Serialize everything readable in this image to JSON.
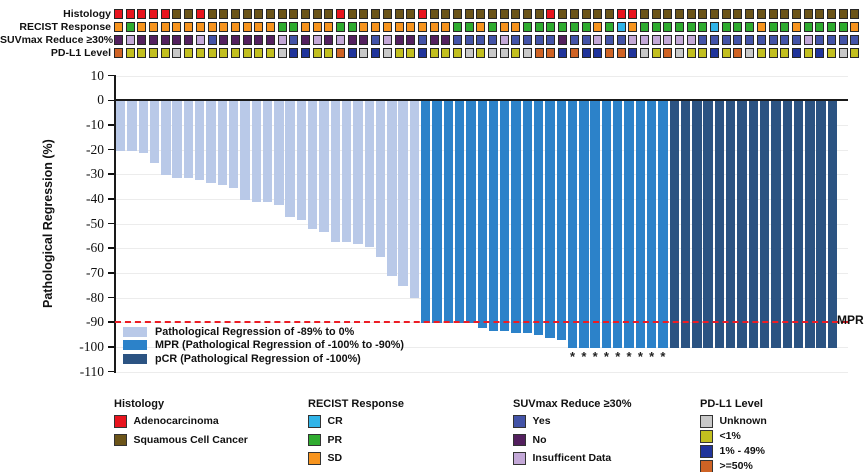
{
  "annotation": {
    "rows": [
      {
        "key": "histology",
        "label": "Histology"
      },
      {
        "key": "recist",
        "label": "RECIST Response"
      },
      {
        "key": "suvmax",
        "label": "SUVmax Reduce ≥30%"
      },
      {
        "key": "pdl1",
        "label": "PD-L1 Level"
      }
    ],
    "palettes": {
      "histology": {
        "A": "#e8141e",
        "S": "#6b5418"
      },
      "recist": {
        "CR": "#30b4e8",
        "PR": "#2fab2f",
        "SD": "#f7941e"
      },
      "suvmax": {
        "Y": "#4353a7",
        "N": "#53205e",
        "I": "#c3a8d7"
      },
      "pdl1": {
        "U": "#c9c9c9",
        "L": "#c2bf1f",
        "M": "#20349b",
        "H": "#cf6325"
      }
    },
    "tracks": {
      "histology": [
        "A",
        "A",
        "A",
        "A",
        "A",
        "S",
        "S",
        "A",
        "S",
        "S",
        "S",
        "S",
        "S",
        "S",
        "S",
        "S",
        "S",
        "S",
        "S",
        "A",
        "S",
        "S",
        "S",
        "S",
        "S",
        "S",
        "A",
        "S",
        "S",
        "S",
        "S",
        "S",
        "S",
        "S",
        "S",
        "S",
        "S",
        "A",
        "S",
        "S",
        "S",
        "S",
        "S",
        "A",
        "A",
        "S",
        "S",
        "S",
        "S",
        "S",
        "S",
        "S",
        "S",
        "S",
        "S",
        "S",
        "S",
        "S",
        "S",
        "S",
        "S",
        "S",
        "S",
        "S"
      ],
      "recist": [
        "SD",
        "PR",
        "SD",
        "SD",
        "SD",
        "SD",
        "SD",
        "SD",
        "SD",
        "SD",
        "SD",
        "SD",
        "SD",
        "SD",
        "PR",
        "PR",
        "SD",
        "SD",
        "SD",
        "PR",
        "PR",
        "SD",
        "SD",
        "SD",
        "SD",
        "SD",
        "SD",
        "SD",
        "SD",
        "PR",
        "PR",
        "SD",
        "PR",
        "SD",
        "SD",
        "PR",
        "PR",
        "PR",
        "PR",
        "PR",
        "PR",
        "SD",
        "PR",
        "CR",
        "SD",
        "PR",
        "PR",
        "PR",
        "PR",
        "PR",
        "PR",
        "CR",
        "PR",
        "PR",
        "PR",
        "SD",
        "PR",
        "PR",
        "SD",
        "PR",
        "PR",
        "PR",
        "PR",
        "SD"
      ],
      "suvmax": [
        "N",
        "I",
        "N",
        "N",
        "N",
        "N",
        "N",
        "I",
        "Y",
        "N",
        "N",
        "N",
        "N",
        "N",
        "I",
        "Y",
        "N",
        "I",
        "N",
        "I",
        "N",
        "N",
        "Y",
        "I",
        "N",
        "N",
        "Y",
        "N",
        "N",
        "Y",
        "Y",
        "Y",
        "Y",
        "I",
        "Y",
        "Y",
        "Y",
        "Y",
        "N",
        "Y",
        "Y",
        "I",
        "Y",
        "Y",
        "I",
        "I",
        "I",
        "I",
        "I",
        "I",
        "Y",
        "Y",
        "Y",
        "Y",
        "Y",
        "Y",
        "Y",
        "Y",
        "Y",
        "I",
        "Y",
        "Y",
        "Y",
        "Y"
      ],
      "pdl1": [
        "H",
        "L",
        "L",
        "L",
        "L",
        "U",
        "L",
        "L",
        "L",
        "L",
        "L",
        "L",
        "L",
        "L",
        "U",
        "M",
        "M",
        "L",
        "L",
        "H",
        "M",
        "U",
        "M",
        "U",
        "L",
        "L",
        "M",
        "L",
        "L",
        "L",
        "U",
        "L",
        "U",
        "U",
        "L",
        "U",
        "H",
        "H",
        "M",
        "H",
        "M",
        "M",
        "H",
        "H",
        "M",
        "U",
        "L",
        "H",
        "U",
        "L",
        "L",
        "M",
        "L",
        "H",
        "U",
        "L",
        "L",
        "L",
        "M",
        "L",
        "M",
        "L",
        "U",
        "L"
      ]
    }
  },
  "chart_data": {
    "type": "bar",
    "subtype": "waterfall",
    "title": "",
    "xlabel": "",
    "ylabel": "Pathological Regression (%)",
    "ylim": [
      -110,
      10
    ],
    "yticks": [
      10,
      0,
      -10,
      -20,
      -30,
      -40,
      -50,
      -60,
      -70,
      -80,
      -90,
      -100,
      -110
    ],
    "grid": true,
    "n_patients": 64,
    "values": [
      -20,
      -20,
      -21,
      -25,
      -30,
      -31,
      -31,
      -32,
      -33,
      -34,
      -35,
      -40,
      -41,
      -41,
      -42,
      -47,
      -48,
      -52,
      -53,
      -57,
      -57,
      -58,
      -59,
      -63,
      -71,
      -75,
      -80,
      -90,
      -90,
      -90,
      -90,
      -90,
      -92,
      -93,
      -93,
      -94,
      -94,
      -95,
      -96,
      -97,
      -100,
      -100,
      -100,
      -100,
      -100,
      -100,
      -100,
      -100,
      -100,
      -100,
      -100,
      -100,
      -100,
      -100,
      -100,
      -100,
      -100,
      -100,
      -100,
      -100,
      -100,
      -100,
      -100,
      -100
    ],
    "bar_class": [
      "light",
      "light",
      "light",
      "light",
      "light",
      "light",
      "light",
      "light",
      "light",
      "light",
      "light",
      "light",
      "light",
      "light",
      "light",
      "light",
      "light",
      "light",
      "light",
      "light",
      "light",
      "light",
      "light",
      "light",
      "light",
      "light",
      "light",
      "mpr",
      "mpr",
      "mpr",
      "mpr",
      "mpr",
      "mpr",
      "mpr",
      "mpr",
      "mpr",
      "mpr",
      "mpr",
      "mpr",
      "mpr",
      "mpr",
      "mpr",
      "mpr",
      "mpr",
      "mpr",
      "mpr",
      "mpr",
      "mpr",
      "mpr",
      "pcr",
      "pcr",
      "pcr",
      "pcr",
      "pcr",
      "pcr",
      "pcr",
      "pcr",
      "pcr",
      "pcr",
      "pcr",
      "pcr",
      "pcr",
      "pcr",
      "pcr"
    ],
    "bar_colors": {
      "light": "#b9c9e8",
      "mpr": "#2c82c9",
      "pcr": "#2b5382"
    },
    "asterisk_indices": [
      40,
      41,
      42,
      43,
      44,
      45,
      46,
      47,
      48
    ],
    "asterisk_symbol": "*",
    "reference_line": {
      "y": -90,
      "label": "MPR",
      "color": "#ec1c24",
      "style": "dashed"
    }
  },
  "plot_legend": [
    {
      "code": "light",
      "label": "Pathological Regression of -89% to 0%"
    },
    {
      "code": "mpr",
      "label": "MPR (Pathological Regression of -100% to -90%)"
    },
    {
      "code": "pcr",
      "label": "pCR (Pathological Regression of -100%)"
    }
  ],
  "bottom_legend": [
    {
      "title": "Histology",
      "items": [
        {
          "label": "Adenocarcinoma",
          "color": "#e8141e"
        },
        {
          "label": "Squamous Cell Cancer",
          "color": "#6b5418"
        }
      ]
    },
    {
      "title": "RECIST Response",
      "items": [
        {
          "label": "CR",
          "color": "#30b4e8"
        },
        {
          "label": "PR",
          "color": "#2fab2f"
        },
        {
          "label": "SD",
          "color": "#f7941e"
        }
      ]
    },
    {
      "title": "SUVmax Reduce ≥30%",
      "items": [
        {
          "label": "Yes",
          "color": "#4353a7"
        },
        {
          "label": "No",
          "color": "#53205e"
        },
        {
          "label": "Insufficent Data",
          "color": "#c3a8d7"
        }
      ]
    },
    {
      "title": "PD-L1 Level",
      "items": [
        {
          "label": "Unknown",
          "color": "#c9c9c9"
        },
        {
          "label": "<1%",
          "color": "#c2bf1f"
        },
        {
          "label": "1% - 49%",
          "color": "#20349b"
        },
        {
          "label": ">=50%",
          "color": "#cf6325"
        }
      ]
    }
  ]
}
